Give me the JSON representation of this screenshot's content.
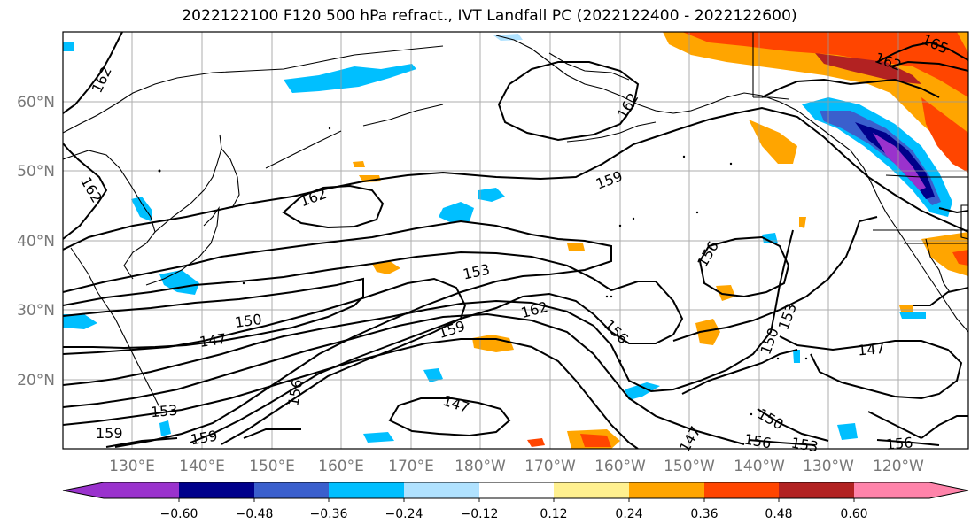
{
  "title": "2022122100 F120 500 hPa refract., IVT Landfall PC (2022122400 - 2022122600)",
  "map": {
    "lon_labels": [
      "130°E",
      "140°E",
      "150°E",
      "160°E",
      "170°E",
      "180°W",
      "170°W",
      "160°W",
      "150°W",
      "140°W",
      "130°W",
      "120°W"
    ],
    "lat_labels": [
      "60°N",
      "50°N",
      "40°N",
      "30°N",
      "20°N"
    ],
    "contour_labels": [
      "162",
      "162",
      "162",
      "159",
      "156",
      "153",
      "150",
      "147",
      "153",
      "159",
      "162",
      "156",
      "147",
      "150",
      "147",
      "159",
      "159",
      "165",
      "162",
      "156",
      "153",
      "150",
      "156",
      "147",
      "153",
      "156",
      "162"
    ]
  },
  "colorbar": {
    "tick_labels": [
      "−0.60",
      "−0.48",
      "−0.36",
      "−0.24",
      "−0.12",
      "0.12",
      "0.24",
      "0.36",
      "0.48",
      "0.60"
    ],
    "colors": [
      "#9a32cd",
      "#00008b",
      "#3a5fcd",
      "#00bfff",
      "#b0e2ff",
      "#ffffff",
      "#fff08f",
      "#ffa500",
      "#ff4500",
      "#b22222",
      "#ff83aa"
    ]
  }
}
